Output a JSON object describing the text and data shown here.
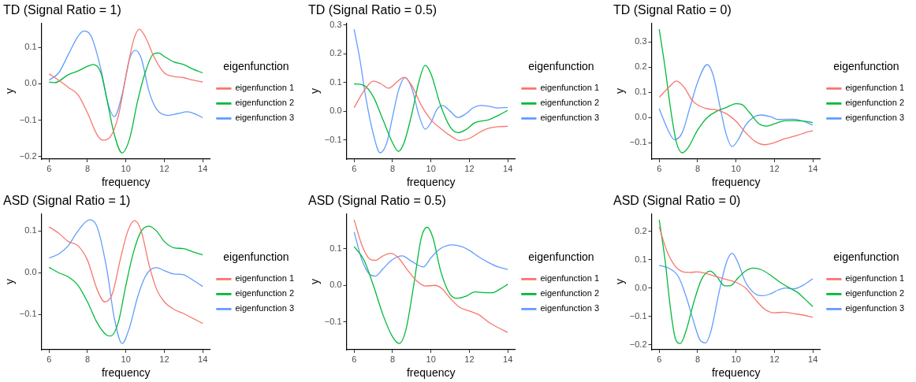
{
  "chart_data": [
    {
      "type": "line",
      "title": "TD (Signal Ratio = 1)",
      "xlabel": "frequency",
      "ylabel": "y",
      "legend_title": "eigenfunction",
      "legend": "right",
      "grid": false,
      "marker": "none",
      "xlim": [
        5.6,
        14.4
      ],
      "xticks": [
        6,
        8,
        10,
        12,
        14
      ],
      "ylim": [
        -0.207,
        0.167
      ],
      "yticks": [
        {
          "value": -0.2,
          "label": "−0.2"
        },
        {
          "value": -0.1,
          "label": "−0.1"
        },
        {
          "value": 0,
          "label": "0.0"
        },
        0.1
      ],
      "series": [
        {
          "name": "eigenfunction 1",
          "color": "#f8766d",
          "x": [
            6,
            6.5,
            7,
            7.5,
            8,
            8.5,
            8.8,
            9.2,
            9.6,
            10,
            10.4,
            10.7,
            11,
            11.5,
            12,
            12.5,
            13,
            13.5,
            14
          ],
          "values": [
            0.027,
            0.01,
            -0.01,
            -0.03,
            -0.08,
            -0.14,
            -0.155,
            -0.145,
            -0.09,
            0.02,
            0.12,
            0.15,
            0.13,
            0.07,
            0.03,
            0.02,
            0.017,
            0.01,
            0.005
          ]
        },
        {
          "name": "eigenfunction 2",
          "color": "#00ba38",
          "x": [
            6,
            6.3,
            7,
            7.5,
            8,
            8.3,
            8.7,
            9,
            9.4,
            9.8,
            10.2,
            10.6,
            11,
            11.4,
            11.7,
            12,
            12.5,
            13,
            13.5,
            14
          ],
          "values": [
            0.005,
            0.003,
            0.025,
            0.035,
            0.048,
            0.053,
            0.03,
            -0.04,
            -0.14,
            -0.19,
            -0.15,
            -0.05,
            0.03,
            0.08,
            0.085,
            0.075,
            0.06,
            0.053,
            0.04,
            0.03
          ]
        },
        {
          "name": "eigenfunction 3",
          "color": "#619cff",
          "x": [
            6,
            6.5,
            7,
            7.5,
            7.8,
            8.2,
            8.7,
            9.1,
            9.4,
            9.8,
            10.2,
            10.5,
            10.8,
            11.2,
            11.6,
            12.2,
            12.7,
            13.2,
            13.6,
            14
          ],
          "values": [
            0.01,
            0.03,
            0.08,
            0.13,
            0.145,
            0.13,
            0.04,
            -0.06,
            -0.09,
            -0.03,
            0.07,
            0.092,
            0.07,
            -0.02,
            -0.07,
            -0.087,
            -0.082,
            -0.077,
            -0.083,
            -0.093
          ]
        }
      ]
    },
    {
      "type": "line",
      "title": "TD (Signal Ratio = 0.5)",
      "xlabel": "frequency",
      "ylabel": "y",
      "legend_title": "eigenfunction",
      "legend": "right",
      "grid": false,
      "marker": "none",
      "xlim": [
        5.6,
        14.4
      ],
      "xticks": [
        6,
        8,
        10,
        12,
        14
      ],
      "ylim": [
        -0.167,
        0.307
      ],
      "yticks": [
        {
          "value": -0.1,
          "label": "−0.1"
        },
        {
          "value": 0,
          "label": "0.0"
        },
        0.1,
        0.2,
        0.3
      ],
      "series": [
        {
          "name": "eigenfunction 1",
          "color": "#f8766d",
          "x": [
            6,
            6.5,
            7,
            7.4,
            7.8,
            8.2,
            8.6,
            9,
            9.5,
            10,
            10.5,
            11,
            11.5,
            12,
            12.5,
            13,
            13.5,
            14
          ],
          "values": [
            0.012,
            0.07,
            0.105,
            0.095,
            0.08,
            0.1,
            0.118,
            0.09,
            0.02,
            -0.03,
            -0.06,
            -0.085,
            -0.102,
            -0.095,
            -0.075,
            -0.06,
            -0.054,
            -0.053
          ]
        },
        {
          "name": "eigenfunction 2",
          "color": "#00ba38",
          "x": [
            6,
            6.5,
            7,
            7.5,
            8,
            8.3,
            8.6,
            9,
            9.4,
            9.7,
            10,
            10.5,
            11,
            11.4,
            11.8,
            12.3,
            13,
            13.5,
            14
          ],
          "values": [
            0.095,
            0.09,
            0.05,
            -0.03,
            -0.11,
            -0.14,
            -0.11,
            -0.01,
            0.11,
            0.16,
            0.13,
            0.02,
            -0.055,
            -0.075,
            -0.065,
            -0.04,
            -0.03,
            -0.015,
            0.003
          ]
        },
        {
          "name": "eigenfunction 3",
          "color": "#619cff",
          "x": [
            6,
            6.3,
            6.6,
            7,
            7.35,
            7.7,
            8,
            8.3,
            8.65,
            9,
            9.4,
            9.7,
            10,
            10.3,
            10.6,
            11,
            11.4,
            11.8,
            12.2,
            12.6,
            13,
            13.5,
            14
          ],
          "values": [
            0.285,
            0.18,
            0.05,
            -0.08,
            -0.145,
            -0.11,
            -0.02,
            0.07,
            0.117,
            0.08,
            -0.02,
            -0.063,
            -0.04,
            0.005,
            0.02,
            0.0,
            -0.022,
            -0.01,
            0.012,
            0.02,
            0.017,
            0.011,
            0.013
          ]
        }
      ]
    },
    {
      "type": "line",
      "title": "TD (Signal Ratio = 0)",
      "xlabel": "frequency",
      "ylabel": "y",
      "legend_title": "eigenfunction",
      "legend": "right",
      "grid": false,
      "marker": "none",
      "xlim": [
        5.6,
        14.4
      ],
      "xticks": [
        6,
        8,
        10,
        12,
        14
      ],
      "ylim": [
        -0.165,
        0.375
      ],
      "yticks": [
        {
          "value": -0.1,
          "label": "−0.1"
        },
        {
          "value": 0,
          "label": "0.0"
        },
        0.1,
        0.2,
        0.3
      ],
      "series": [
        {
          "name": "eigenfunction 1",
          "color": "#f8766d",
          "x": [
            6,
            6.5,
            6.9,
            7.3,
            7.7,
            8,
            8.5,
            9,
            9.5,
            10,
            10.5,
            11,
            11.5,
            12,
            12.5,
            13,
            13.5,
            14
          ],
          "values": [
            0.08,
            0.12,
            0.145,
            0.12,
            0.07,
            0.05,
            0.035,
            0.03,
            0.015,
            -0.015,
            -0.06,
            -0.095,
            -0.108,
            -0.1,
            -0.085,
            -0.075,
            -0.063,
            -0.052
          ]
        },
        {
          "name": "eigenfunction 2",
          "color": "#00ba38",
          "x": [
            6,
            6.3,
            6.6,
            6.9,
            7.2,
            7.5,
            8,
            8.5,
            9,
            9.5,
            10,
            10.3,
            10.7,
            11.2,
            11.6,
            12,
            12.5,
            13,
            13.5,
            14
          ],
          "values": [
            0.35,
            0.2,
            0.03,
            -0.1,
            -0.14,
            -0.12,
            -0.05,
            0.0,
            0.025,
            0.04,
            0.055,
            0.052,
            0.02,
            -0.025,
            -0.034,
            -0.025,
            -0.013,
            -0.012,
            -0.014,
            -0.02
          ]
        },
        {
          "name": "eigenfunction 3",
          "color": "#619cff",
          "x": [
            6,
            6.4,
            6.8,
            7.2,
            7.6,
            8,
            8.5,
            8.8,
            9.2,
            9.5,
            9.8,
            10.1,
            10.5,
            11,
            11.3,
            11.8,
            12.2,
            12.7,
            13,
            13.5,
            14
          ],
          "values": [
            0.035,
            -0.04,
            -0.088,
            -0.06,
            0.04,
            0.14,
            0.21,
            0.17,
            0.03,
            -0.07,
            -0.115,
            -0.09,
            -0.03,
            0.005,
            0.01,
            0.003,
            -0.008,
            -0.007,
            -0.007,
            -0.015,
            -0.03
          ]
        }
      ]
    },
    {
      "type": "line",
      "title": "ASD (Signal Ratio = 1)",
      "xlabel": "frequency",
      "ylabel": "y",
      "legend_title": "eigenfunction",
      "legend": "right",
      "grid": false,
      "marker": "none",
      "xlim": [
        5.6,
        14.4
      ],
      "xticks": [
        6,
        8,
        10,
        12,
        14
      ],
      "ylim": [
        -0.185,
        0.142
      ],
      "yticks": [
        {
          "value": -0.1,
          "label": "−0.1"
        },
        {
          "value": 0,
          "label": "0.0"
        },
        0.1
      ],
      "series": [
        {
          "name": "eigenfunction 1",
          "color": "#f8766d",
          "x": [
            6,
            6.5,
            7,
            7.5,
            8,
            8.5,
            8.9,
            9.3,
            9.7,
            10.1,
            10.45,
            10.8,
            11.2,
            11.6,
            12,
            12.5,
            13,
            13.5,
            14
          ],
          "values": [
            0.11,
            0.095,
            0.075,
            0.065,
            0.03,
            -0.04,
            -0.07,
            -0.05,
            0.03,
            0.1,
            0.125,
            0.1,
            0.02,
            -0.04,
            -0.07,
            -0.088,
            -0.098,
            -0.11,
            -0.122
          ]
        },
        {
          "name": "eigenfunction 2",
          "color": "#00ba38",
          "x": [
            6,
            6.5,
            7,
            7.5,
            8,
            8.5,
            9,
            9.2,
            9.6,
            10,
            10.4,
            10.8,
            11.2,
            11.6,
            12,
            12.5,
            13,
            13.5,
            14
          ],
          "values": [
            0.013,
            0.0,
            -0.01,
            -0.03,
            -0.07,
            -0.12,
            -0.15,
            -0.152,
            -0.12,
            -0.03,
            0.05,
            0.1,
            0.112,
            0.1,
            0.075,
            0.06,
            0.058,
            0.05,
            0.043
          ]
        },
        {
          "name": "eigenfunction 3",
          "color": "#619cff",
          "x": [
            6,
            6.5,
            7,
            7.5,
            8.1,
            8.5,
            9,
            9.4,
            9.8,
            10.2,
            10.6,
            11,
            11.3,
            11.6,
            12,
            12.5,
            13,
            13.5,
            14
          ],
          "values": [
            0.035,
            0.045,
            0.065,
            0.1,
            0.127,
            0.11,
            0.01,
            -0.11,
            -0.17,
            -0.13,
            -0.06,
            -0.01,
            0.008,
            0.012,
            0.005,
            -0.003,
            -0.005,
            -0.018,
            -0.033
          ]
        }
      ]
    },
    {
      "type": "line",
      "title": "ASD (Signal Ratio = 0.5)",
      "xlabel": "frequency",
      "ylabel": "y",
      "legend_title": "eigenfunction",
      "legend": "right",
      "grid": false,
      "marker": "none",
      "xlim": [
        5.6,
        14.4
      ],
      "xticks": [
        6,
        8,
        10,
        12,
        14
      ],
      "ylim": [
        -0.175,
        0.195
      ],
      "yticks": [
        {
          "value": -0.1,
          "label": "−0.1"
        },
        {
          "value": 0,
          "label": "0.0"
        },
        0.1
      ],
      "series": [
        {
          "name": "eigenfunction 1",
          "color": "#f8766d",
          "x": [
            6,
            6.4,
            6.8,
            7.1,
            7.5,
            7.9,
            8.3,
            8.8,
            9.3,
            9.7,
            10.2,
            10.6,
            11,
            11.5,
            12,
            12.5,
            13,
            13.5,
            14
          ],
          "values": [
            0.178,
            0.11,
            0.072,
            0.068,
            0.08,
            0.087,
            0.075,
            0.04,
            0.01,
            -0.002,
            0.0,
            -0.01,
            -0.035,
            -0.06,
            -0.07,
            -0.08,
            -0.1,
            -0.115,
            -0.128
          ]
        },
        {
          "name": "eigenfunction 2",
          "color": "#00ba38",
          "x": [
            6,
            6.5,
            7,
            7.5,
            8,
            8.35,
            8.7,
            9.1,
            9.5,
            9.8,
            10.1,
            10.5,
            11,
            11.4,
            11.8,
            12.3,
            12.8,
            13.2,
            13.6,
            14
          ],
          "values": [
            0.105,
            0.07,
            0.0,
            -0.08,
            -0.14,
            -0.158,
            -0.12,
            0.0,
            0.13,
            0.158,
            0.13,
            0.04,
            -0.025,
            -0.035,
            -0.03,
            -0.018,
            -0.02,
            -0.02,
            -0.01,
            0.003
          ]
        },
        {
          "name": "eigenfunction 3",
          "color": "#619cff",
          "x": [
            6,
            6.4,
            6.8,
            7.1,
            7.5,
            8,
            8.5,
            9,
            9.6,
            10,
            10.5,
            11.1,
            11.6,
            12,
            12.5,
            13,
            13.5,
            14
          ],
          "values": [
            0.145,
            0.07,
            0.03,
            0.025,
            0.045,
            0.07,
            0.08,
            0.065,
            0.05,
            0.075,
            0.1,
            0.11,
            0.105,
            0.095,
            0.077,
            0.062,
            0.05,
            0.043
          ]
        }
      ]
    },
    {
      "type": "line",
      "title": "ASD (Signal Ratio = 0)",
      "xlabel": "frequency",
      "ylabel": "y",
      "legend_title": "eigenfunction",
      "legend": "right",
      "grid": false,
      "marker": "none",
      "xlim": [
        5.6,
        14.4
      ],
      "xticks": [
        6,
        8,
        10,
        12,
        14
      ],
      "ylim": [
        -0.217,
        0.262
      ],
      "yticks": [
        {
          "value": -0.2,
          "label": "−0.2"
        },
        {
          "value": -0.1,
          "label": "−0.1"
        },
        {
          "value": 0,
          "label": "0.0"
        },
        0.1,
        0.2
      ],
      "series": [
        {
          "name": "eigenfunction 1",
          "color": "#f8766d",
          "x": [
            6,
            6.4,
            6.8,
            7.2,
            7.6,
            8,
            8.5,
            9,
            9.5,
            10,
            10.5,
            11,
            11.5,
            12,
            12.5,
            13,
            13.5,
            14
          ],
          "values": [
            0.215,
            0.13,
            0.08,
            0.058,
            0.055,
            0.057,
            0.05,
            0.04,
            0.03,
            0.02,
            0.0,
            -0.04,
            -0.075,
            -0.087,
            -0.085,
            -0.09,
            -0.095,
            -0.103
          ]
        },
        {
          "name": "eigenfunction 2",
          "color": "#00ba38",
          "x": [
            6,
            6.3,
            6.6,
            6.85,
            7.1,
            7.4,
            7.8,
            8.2,
            8.65,
            9,
            9.4,
            9.7,
            10.1,
            10.5,
            10.9,
            11.3,
            11.8,
            12.3,
            12.8,
            13.2,
            13.6,
            14
          ],
          "values": [
            0.24,
            0.1,
            -0.08,
            -0.18,
            -0.195,
            -0.15,
            -0.05,
            0.03,
            0.06,
            0.04,
            0.008,
            0.008,
            0.035,
            0.06,
            0.07,
            0.065,
            0.045,
            0.02,
            0.0,
            -0.015,
            -0.04,
            -0.065
          ]
        },
        {
          "name": "eigenfunction 3",
          "color": "#619cff",
          "x": [
            6,
            6.5,
            7,
            7.4,
            7.8,
            8.1,
            8.4,
            8.7,
            9.1,
            9.5,
            9.8,
            10.1,
            10.5,
            11,
            11.4,
            11.8,
            12.2,
            12.6,
            13,
            13.5,
            14
          ],
          "values": [
            0.08,
            0.07,
            0.04,
            -0.03,
            -0.12,
            -0.18,
            -0.193,
            -0.15,
            -0.02,
            0.09,
            0.122,
            0.09,
            0.02,
            -0.02,
            -0.027,
            -0.02,
            -0.007,
            0.0,
            -0.003,
            0.01,
            0.033
          ]
        }
      ]
    }
  ]
}
